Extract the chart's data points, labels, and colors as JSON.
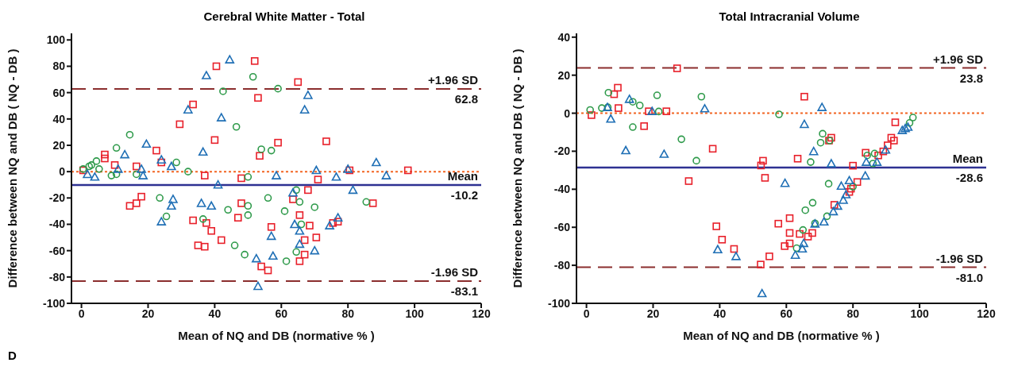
{
  "chart_data": [
    {
      "type": "scatter",
      "title": "Cerebral White Matter - Total",
      "xlabel": "Mean of NQ and DB (normative % )",
      "ylabel": "Difference between NQ and DB ( NQ - DB )",
      "xlim": [
        -3,
        120
      ],
      "xticks": [
        0,
        20,
        40,
        60,
        80,
        100,
        120
      ],
      "ylim": [
        -100,
        105
      ],
      "yticks": [
        -100,
        -80,
        -60,
        -40,
        -20,
        0,
        20,
        40,
        60,
        80,
        100
      ],
      "annotations": [
        "D",
        {
          "text": "62.8",
          "y": 62.8
        },
        {
          "text": "-10.2",
          "y": -10.2
        },
        {
          "text": "-83.1",
          "y": -83.1
        }
      ],
      "ref_lines": [
        {
          "axis": "y",
          "value": 62.8,
          "label": "+1.96 SD",
          "color": "#8b2e2e",
          "line_style": "dashed"
        },
        {
          "axis": "y",
          "value": -10.2,
          "label": "Mean",
          "color": "#2e3192",
          "line_style": "solid"
        },
        {
          "axis": "y",
          "value": -83.1,
          "label": "-1.96 SD",
          "color": "#8b2e2e",
          "line_style": "dashed"
        },
        {
          "axis": "y",
          "value": 0,
          "color": "#f26522",
          "line_style": "dotted"
        }
      ],
      "series": [
        {
          "color": "#e8202a",
          "marker": "square",
          "x": [
            0.5,
            7,
            7,
            10,
            14.5,
            16.5,
            18,
            16.5,
            22.5,
            24,
            29.5,
            33.5,
            40.5,
            40,
            37,
            33.5,
            37.5,
            39,
            42,
            35,
            37,
            52,
            53,
            53.5,
            59,
            48,
            48,
            47,
            57,
            54,
            56,
            65,
            73.5,
            80.5,
            71,
            68,
            63.5,
            87.5,
            65.5,
            68.5,
            75.5,
            77,
            67,
            70.5,
            67,
            65.5,
            98
          ],
          "values": [
            1,
            13,
            10,
            5,
            -26,
            -24,
            -19,
            4,
            16,
            7,
            36,
            51,
            80,
            24,
            -3,
            -37,
            -39,
            -45,
            -52,
            -56,
            -57,
            84,
            56,
            12,
            22,
            -5,
            -24,
            -35,
            -42,
            -72,
            -75,
            68,
            23,
            1,
            -6,
            -14,
            -21,
            -24,
            -33,
            -41,
            -39,
            -38,
            -52,
            -50,
            -63,
            -68,
            1
          ]
        },
        {
          "color": "#2e9a4a",
          "marker": "circle",
          "x": [
            0.5,
            2.3,
            4.5,
            5.3,
            3,
            9,
            10.5,
            14.5,
            10.5,
            16.5,
            23.5,
            25.5,
            28.5,
            32,
            36.5,
            42.5,
            46.5,
            44,
            46,
            49,
            51.5,
            54,
            57,
            50,
            50,
            50,
            56,
            59,
            61,
            61.5,
            64.5,
            65.5,
            70,
            66,
            64.5,
            85.5
          ],
          "values": [
            2,
            4,
            8,
            2,
            5,
            -3,
            18,
            28,
            -2,
            -2,
            -20,
            -34,
            7,
            0,
            -36,
            61,
            34,
            -29,
            -56,
            -63,
            72,
            17,
            16,
            -4,
            -26,
            -33,
            -20,
            63,
            -30,
            -68,
            -14,
            -23,
            -27,
            -40,
            -61,
            -23
          ]
        },
        {
          "color": "#1f6fb5",
          "marker": "triangle",
          "x": [
            1.8,
            4,
            11,
            13,
            19.5,
            18,
            18.5,
            24,
            27,
            27.5,
            27,
            24,
            32,
            37.5,
            44.5,
            42,
            36.5,
            41,
            36,
            39,
            52.5,
            53,
            57.5,
            57,
            58.5,
            68,
            67,
            70.5,
            76.5,
            80,
            88.5,
            91.5,
            81.5,
            63.5,
            64,
            65.5,
            74.5,
            77,
            65.5,
            70
          ],
          "values": [
            -2,
            -4,
            2,
            13,
            21,
            2,
            -3,
            9,
            4,
            -21,
            -26,
            -38,
            47,
            73,
            85,
            41,
            15,
            -10,
            -24,
            -26,
            -66,
            -87,
            -64,
            -49,
            -3,
            58,
            47,
            1,
            -4,
            2,
            7,
            -3,
            -14,
            -16,
            -40,
            -45,
            -41,
            -35,
            -55,
            -60
          ]
        }
      ]
    },
    {
      "type": "scatter",
      "title": "Total Intracranial Volume",
      "xlabel": "Mean of NQ and DB (normative % )",
      "ylabel": "Difference between NQ and DB ( NQ - DB )",
      "xlim": [
        -3,
        120
      ],
      "xticks": [
        0,
        20,
        40,
        60,
        80,
        100,
        120
      ],
      "ylim": [
        -100,
        42
      ],
      "yticks": [
        -100,
        -80,
        -60,
        -40,
        -20,
        0,
        20,
        40
      ],
      "annotations": [
        {
          "text": "23.8",
          "y": 23.8
        },
        {
          "text": "-28.6",
          "y": -28.6
        },
        {
          "text": "-81.0",
          "y": -81.0
        }
      ],
      "ref_lines": [
        {
          "axis": "y",
          "value": 23.8,
          "label": "+1.96 SD",
          "color": "#8b2e2e",
          "line_style": "dashed"
        },
        {
          "axis": "y",
          "value": -28.6,
          "label": "Mean",
          "color": "#2e3192",
          "line_style": "solid"
        },
        {
          "axis": "y",
          "value": -81.0,
          "label": "-1.96 SD",
          "color": "#8b2e2e",
          "line_style": "dashed"
        },
        {
          "axis": "y",
          "value": 0,
          "color": "#f26522",
          "line_style": "dotted"
        }
      ],
      "series": [
        {
          "color": "#e8202a",
          "marker": "square",
          "x": [
            1.5,
            8.3,
            9.4,
            9.6,
            17.3,
            18.7,
            24,
            27.2,
            37.9,
            30.7,
            39,
            40.7,
            44.3,
            52.3,
            53,
            52.4,
            53.6,
            54.9,
            65.4,
            92.7,
            73.5,
            72.8,
            63.4,
            80,
            83.8,
            81.3,
            79.4,
            78.9,
            74.4,
            61,
            57.6,
            61,
            64,
            67.8,
            66.5,
            61,
            59.5,
            91.5,
            92.3,
            90.4,
            89.1,
            87.6
          ],
          "values": [
            -1,
            10,
            13.4,
            2.7,
            -6.8,
            1,
            1,
            23.6,
            -18.7,
            -35.7,
            -59.5,
            -66.5,
            -71.4,
            -79.6,
            -25,
            -27.5,
            -34,
            -75.3,
            8.7,
            -4.8,
            -12.9,
            -14.4,
            -23.9,
            -27.6,
            -20.8,
            -36.2,
            -39.7,
            -41.4,
            -48.2,
            -55.2,
            -58.1,
            -63,
            -63.5,
            -63,
            -64.9,
            -68.5,
            -69.9,
            -12.9,
            -14.4,
            -16.9,
            -20.1,
            -22.2
          ]
        },
        {
          "color": "#2e9a4a",
          "marker": "circle",
          "x": [
            1.1,
            4.6,
            6.4,
            6.6,
            13.9,
            16,
            21.2,
            21.7,
            13.9,
            28.5,
            34.5,
            33,
            57.8,
            98,
            97,
            70.9,
            70.3,
            73,
            67.3,
            84.3,
            86.5,
            86,
            72.7,
            67.9,
            65.7,
            72.2,
            68.6,
            65,
            63.1,
            80
          ],
          "values": [
            1.7,
            2.7,
            3.1,
            10.8,
            6,
            4.1,
            9.4,
            0.9,
            -7.3,
            -13.7,
            8.7,
            -25,
            -0.6,
            -2.3,
            -5.1,
            -10.8,
            -15.5,
            -14.4,
            -25.7,
            -22.2,
            -21.2,
            -26.5,
            -37.1,
            -47.1,
            -51,
            -54.2,
            -57.9,
            -61.4,
            -71,
            -38.6
          ]
        },
        {
          "color": "#1f6fb5",
          "marker": "triangle",
          "x": [
            6.3,
            7.3,
            12.9,
            19.7,
            35.5,
            11.8,
            23.3,
            39.4,
            44.9,
            52.7,
            70.7,
            65.4,
            68.2,
            73.5,
            59.6,
            76.5,
            78.9,
            83.7,
            84,
            87.2,
            89.8,
            77.9,
            77.1,
            75.4,
            74.1,
            71.3,
            68.6,
            65.2,
            64.8,
            62.7,
            95.7,
            96.5,
            94.8
          ],
          "values": [
            3.1,
            -3,
            7.4,
            1,
            2.4,
            -19.6,
            -21.5,
            -71.7,
            -75.3,
            -94.8,
            3.1,
            -5.8,
            -20.1,
            -26.5,
            -36.8,
            -38.3,
            -35.4,
            -32.9,
            -25.7,
            -25.7,
            -19.3,
            -42.8,
            -45.7,
            -48.8,
            -51.7,
            -57.1,
            -58.2,
            -68.4,
            -71.3,
            -74.6,
            -8,
            -7.3,
            -9
          ]
        }
      ]
    }
  ]
}
